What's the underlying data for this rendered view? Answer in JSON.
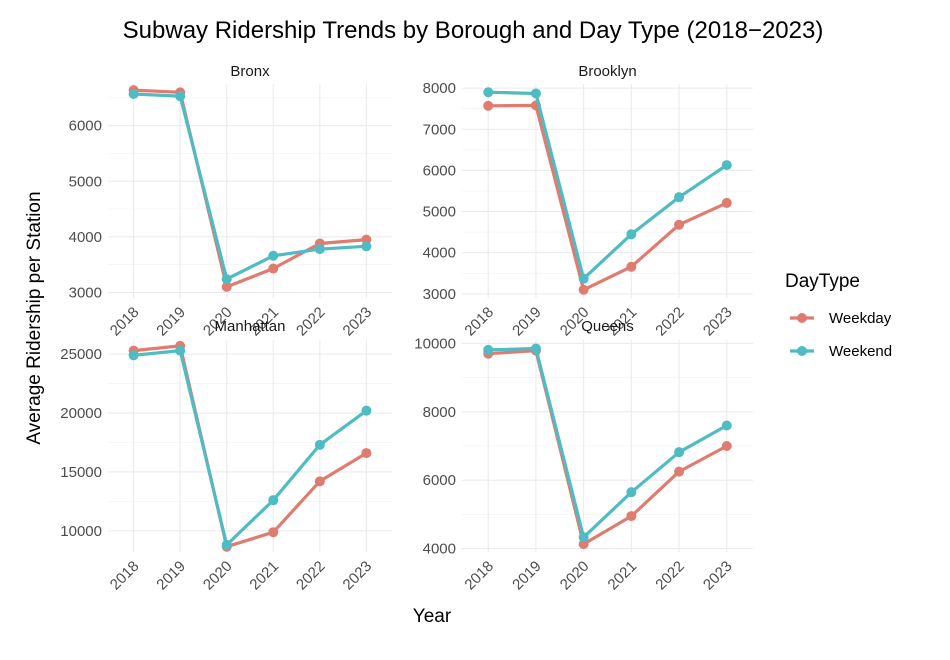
{
  "chart_data": {
    "type": "line",
    "title": "Subway Ridership Trends by Borough and Day Type (2018−2023)",
    "xlabel": "Year",
    "ylabel": "Average Ridership per Station",
    "x": [
      "2018",
      "2019",
      "2020",
      "2021",
      "2022",
      "2023"
    ],
    "legend": {
      "title": "DayType",
      "position": "right",
      "entries": [
        {
          "name": "Weekday",
          "color": "#E07B70"
        },
        {
          "name": "Weekend",
          "color": "#4FBBC3"
        }
      ]
    },
    "grid": true,
    "panels": [
      {
        "name": "Bronx",
        "ylim": [
          2900,
          6750
        ],
        "yticks": [
          3000,
          4000,
          5000,
          6000
        ],
        "yminor": [
          3500,
          4500,
          5500,
          6500
        ],
        "series": [
          {
            "name": "Weekday",
            "values": [
              6640,
              6600,
              3100,
              3430,
              3880,
              3950
            ]
          },
          {
            "name": "Weekend",
            "values": [
              6570,
              6530,
              3240,
              3660,
              3780,
              3830
            ]
          }
        ]
      },
      {
        "name": "Brooklyn",
        "ylim": [
          2900,
          8100
        ],
        "yticks": [
          3000,
          4000,
          5000,
          6000,
          7000,
          8000
        ],
        "yminor": [
          3500,
          4500,
          5500,
          6500,
          7500
        ],
        "series": [
          {
            "name": "Weekday",
            "values": [
              7570,
              7580,
              3100,
              3660,
              4680,
              5210
            ]
          },
          {
            "name": "Weekend",
            "values": [
              7900,
              7870,
              3370,
              4450,
              5350,
              6130
            ]
          }
        ]
      },
      {
        "name": "Manhattan",
        "ylim": [
          8200,
          26200
        ],
        "yticks": [
          10000,
          15000,
          20000,
          25000
        ],
        "yminor": [
          12500,
          17500,
          22500
        ],
        "series": [
          {
            "name": "Weekday",
            "values": [
              25300,
              25700,
              8650,
              9880,
              14200,
              16600
            ]
          },
          {
            "name": "Weekend",
            "values": [
              24900,
              25300,
              8800,
              12600,
              17300,
              20200
            ]
          }
        ]
      },
      {
        "name": "Queens",
        "ylim": [
          3900,
          10100
        ],
        "yticks": [
          4000,
          6000,
          8000,
          10000
        ],
        "yminor": [
          5000,
          7000,
          9000
        ],
        "series": [
          {
            "name": "Weekday",
            "values": [
              9700,
              9790,
              4130,
              4950,
              6250,
              7000
            ]
          },
          {
            "name": "Weekend",
            "values": [
              9810,
              9850,
              4330,
              5650,
              6820,
              7600
            ]
          }
        ]
      }
    ]
  }
}
